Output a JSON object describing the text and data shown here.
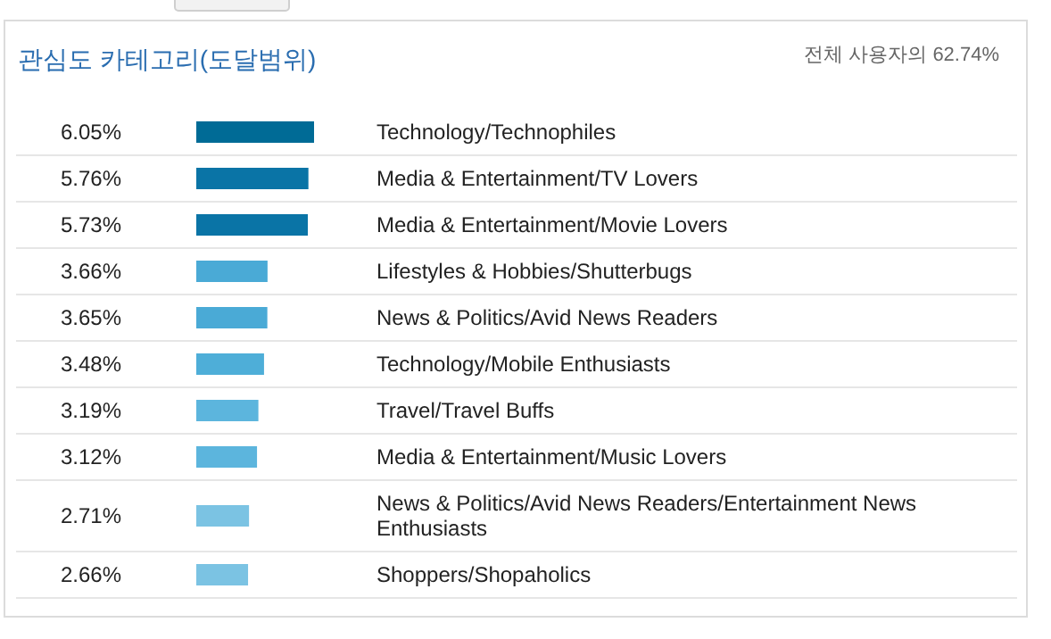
{
  "chart_data": {
    "type": "bar",
    "orientation": "horizontal",
    "title": "관심도 카테고리(도달범위)",
    "subtitle": "전체 사용자의 62.74%",
    "categories": [
      "Technology/Technophiles",
      "Media & Entertainment/TV Lovers",
      "Media & Entertainment/Movie Lovers",
      "Lifestyles & Hobbies/Shutterbugs",
      "News & Politics/Avid News Readers",
      "Technology/Mobile Enthusiasts",
      "Travel/Travel Buffs",
      "Media & Entertainment/Music Lovers",
      "News & Politics/Avid News Readers/Entertainment News Enthusiasts",
      "Shoppers/Shopaholics"
    ],
    "values": [
      6.05,
      5.76,
      5.73,
      3.66,
      3.65,
      3.48,
      3.19,
      3.12,
      2.71,
      2.66
    ],
    "value_labels": [
      "6.05%",
      "5.76%",
      "5.73%",
      "3.66%",
      "3.65%",
      "3.48%",
      "3.19%",
      "3.12%",
      "2.71%",
      "2.66%"
    ],
    "colors": [
      "#006b96",
      "#0a74a6",
      "#0a74a6",
      "#4aaad6",
      "#4aaad6",
      "#4eaed8",
      "#5cb5dd",
      "#5cb5dd",
      "#7bc3e3",
      "#7bc3e3"
    ],
    "tick_labels": "y",
    "grid": "y"
  }
}
